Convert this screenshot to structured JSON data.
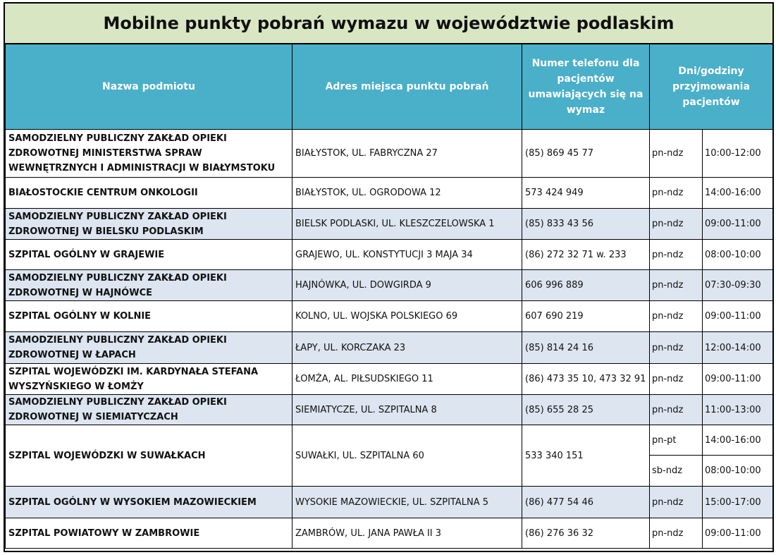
{
  "title": "Mobilne punkty pobrań wymazu w województwie podlaskim",
  "headers": {
    "name": "Nazwa podmiotu",
    "address": "Adres miejsca punktu pobrań",
    "phone": "Numer telefonu dla pacjentów umawiających się na wymaz",
    "hours": "Dni/godziny przyjmowania pacjentów"
  },
  "rows": [
    {
      "name": "SAMODZIELNY PUBLICZNY ZAKŁAD OPIEKI ZDROWOTNEJ MINISTERSTWA SPRAW WEWNĘTRZNYCH I ADMINISTRACJI W BIAŁYMSTOKU",
      "address": "BIAŁYSTOK, UL. FABRYCZNA 27",
      "phone": "(85) 869 45 77",
      "days": "pn-ndz",
      "hours": "10:00-12:00"
    },
    {
      "name": "BIAŁOSTOCKIE CENTRUM ONKOLOGII",
      "address": "BIAŁYSTOK, UL. OGRODOWA 12",
      "phone": "573 424 949",
      "days": "pn-ndz",
      "hours": "14:00-16:00"
    },
    {
      "name": "SAMODZIELNY PUBLICZNY ZAKŁAD OPIEKI ZDROWOTNEJ W BIELSKU PODLASKIM",
      "address": "BIELSK PODLASKI, UL. KLESZCZELOWSKA 1",
      "phone": "(85) 833 43 56",
      "days": "pn-ndz",
      "hours": "09:00-11:00"
    },
    {
      "name": "SZPITAL OGÓLNY W GRAJEWIE",
      "address": "GRAJEWO, UL. KONSTYTUCJI 3 MAJA 34",
      "phone": "(86) 272 32 71 w. 233",
      "days": "pn-ndz",
      "hours": "08:00-10:00"
    },
    {
      "name": "SAMODZIELNY PUBLICZNY ZAKŁAD OPIEKI ZDROWOTNEJ W HAJNÓWCE",
      "address": "HAJNÓWKA, UL. DOWGIRDA 9",
      "phone": "606 996 889",
      "days": "pn-ndz",
      "hours": "07:30-09:30"
    },
    {
      "name": "SZPITAL OGÓLNY W KOLNIE",
      "address": "KOLNO, UL. WOJSKA POLSKIEGO 69",
      "phone": "607 690 219",
      "days": "pn-ndz",
      "hours": "09:00-11:00"
    },
    {
      "name": "SAMODZIELNY PUBLICZNY ZAKŁAD OPIEKI ZDROWOTNEJ W ŁAPACH",
      "address": "ŁAPY, UL. KORCZAKA 23",
      "phone": "(85) 814 24 16",
      "days": "pn-ndz",
      "hours": "12:00-14:00"
    },
    {
      "name": "SZPITAL WOJEWÓDZKI IM. KARDYNAŁA STEFANA WYSZYŃSKIEGO W ŁOMŻY",
      "address": "ŁOMŻA, AL. PIŁSUDSKIEGO 11",
      "phone": "(86) 473 35 10, 473 32 91",
      "days": "pn-ndz",
      "hours": "09:00-11:00"
    },
    {
      "name": "SAMODZIELNY PUBLICZNY ZAKŁAD OPIEKI ZDROWOTNEJ W SIEMIATYCZACH",
      "address": "SIEMIATYCZE, UL. SZPITALNA 8",
      "phone": "(85) 655 28 25",
      "days": "pn-ndz",
      "hours": "11:00-13:00"
    },
    {
      "name": "SZPITAL WOJEWÓDZKI W SUWAŁKACH",
      "address": "SUWAŁKI, UL. SZPITALNA 60",
      "phone": "533 340 151",
      "days": "pn-pt",
      "hours": "14:00-16:00",
      "days2": "sb-ndz",
      "hours2": "08:00-10:00"
    },
    {
      "name": "SZPITAL OGÓLNY W WYSOKIEM MAZOWIECKIEM",
      "address": "WYSOKIE MAZOWIECKIE, UL. SZPITALNA 5",
      "phone": "(86) 477 54 46",
      "days": "pn-ndz",
      "hours": "15:00-17:00"
    },
    {
      "name": "SZPITAL POWIATOWY W ZAMBROWIE",
      "address": "ZAMBRÓW, UL. JANA PAWŁA II 3",
      "phone": "(86) 276 36 32",
      "days": "pn-ndz",
      "hours": "09:00-11:00"
    }
  ]
}
